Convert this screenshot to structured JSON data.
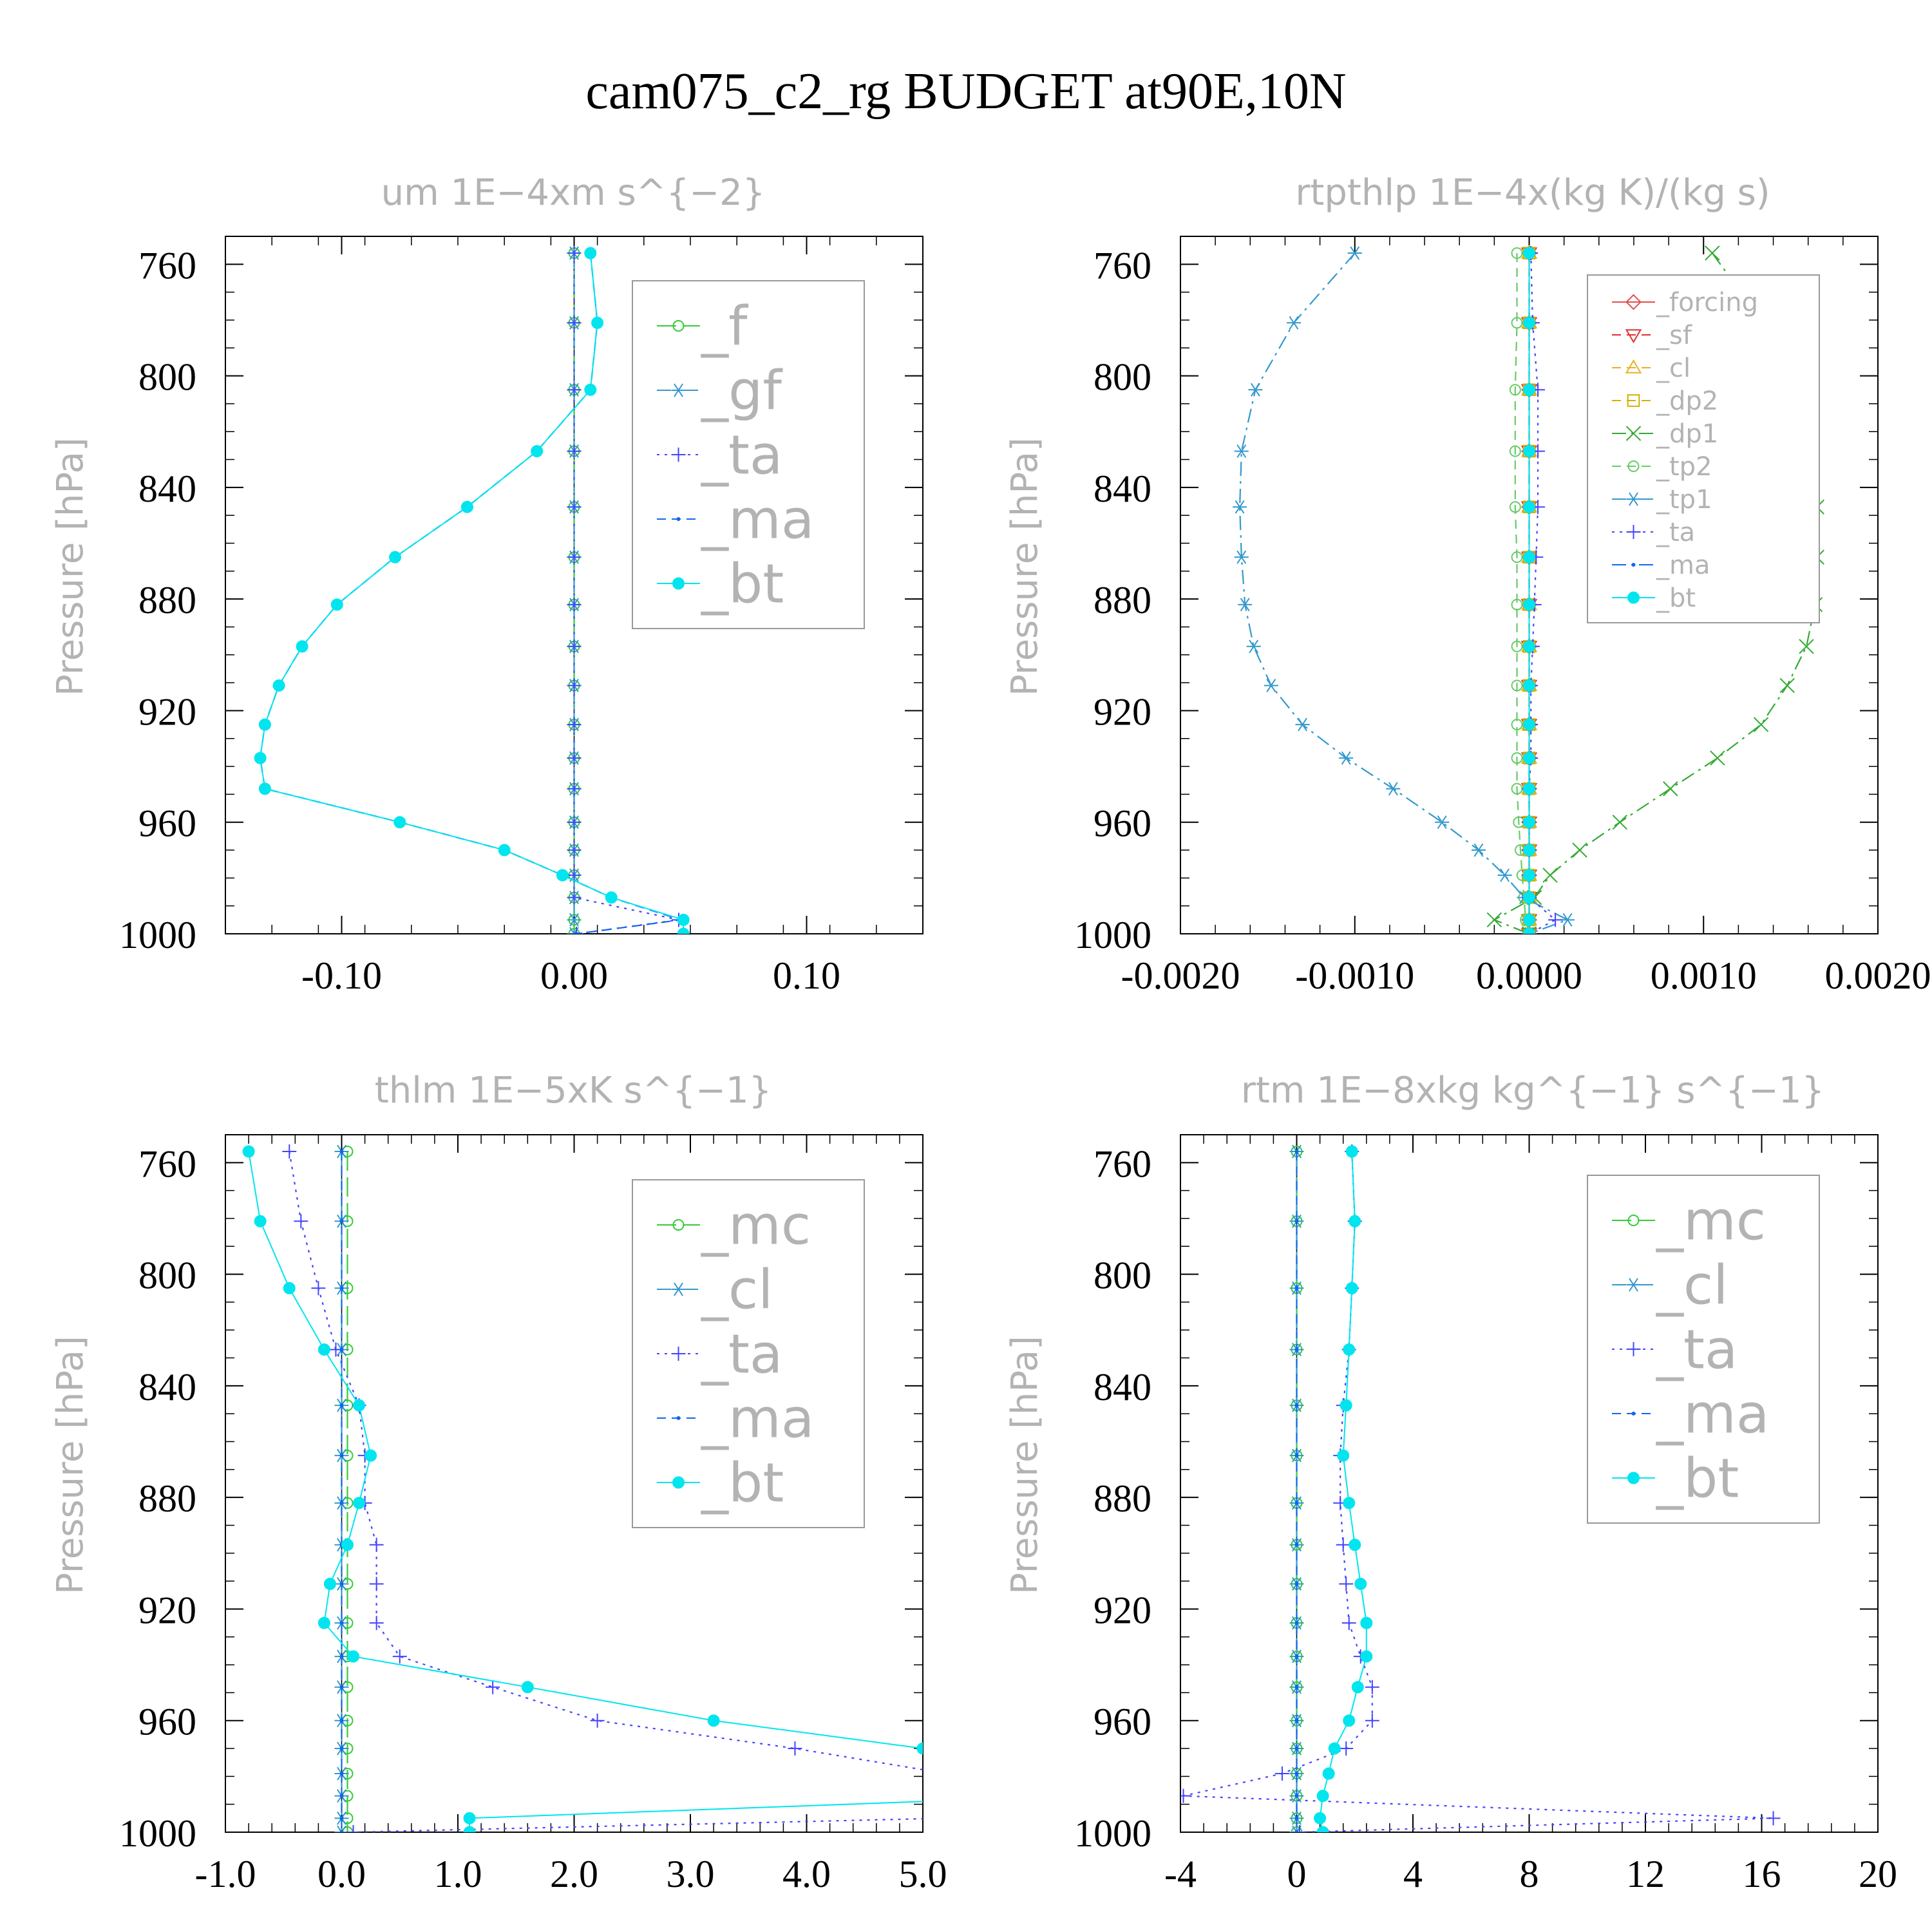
{
  "title": "cam075_c2_rg  BUDGET at90E,10N",
  "chart_data": [
    {
      "type": "line",
      "title": "um   1E−4xm s^{−2}",
      "ylabel": "Pressure [hPa]",
      "ylim": [
        1000,
        750
      ],
      "xlim": [
        -0.15,
        0.15
      ],
      "yticks": [
        "760",
        "800",
        "840",
        "880",
        "920",
        "960",
        "1000"
      ],
      "xticks": [
        "-0.10",
        "0.00",
        "0.10"
      ],
      "grid": false,
      "legend_position": "top-right",
      "levels": [
        756,
        781,
        805,
        827,
        847,
        865,
        882,
        897,
        911,
        925,
        937,
        948,
        960,
        970,
        979,
        987,
        995,
        1000
      ],
      "series": [
        {
          "name": "_f",
          "color": "#33cc33",
          "dash": "long",
          "marker": "circle-open",
          "values": [
            0,
            0,
            0,
            0,
            0,
            0,
            0,
            0,
            0,
            0,
            0,
            0,
            0,
            0,
            0,
            0,
            0,
            0
          ]
        },
        {
          "name": "_gf",
          "color": "#3399cc",
          "dash": "dashdot",
          "marker": "asterisk",
          "values": [
            0,
            0,
            0,
            0,
            0,
            0,
            0,
            0,
            0,
            0,
            0,
            0,
            0,
            0,
            0,
            0,
            0,
            0
          ]
        },
        {
          "name": "_ta",
          "color": "#4444ff",
          "dash": "dot",
          "marker": "plus",
          "values": [
            0,
            0,
            0,
            0,
            0,
            0,
            0,
            0,
            0,
            0,
            0,
            0,
            0,
            0,
            0,
            0,
            0.045,
            0.001
          ]
        },
        {
          "name": "_ma",
          "color": "#1166ee",
          "dash": "dash",
          "marker": "dot",
          "values": [
            0.007,
            0.01,
            0.007,
            -0.016,
            -0.046,
            -0.077,
            -0.102,
            -0.117,
            -0.127,
            -0.133,
            -0.135,
            -0.133,
            -0.075,
            -0.03,
            -0.005,
            0.016,
            0.046,
            0.001
          ]
        },
        {
          "name": "_bt",
          "color": "#00e5ee",
          "dash": "solid",
          "marker": "circle-filled",
          "values": [
            0.007,
            0.01,
            0.007,
            -0.016,
            -0.046,
            -0.077,
            -0.102,
            -0.117,
            -0.127,
            -0.133,
            -0.135,
            -0.133,
            -0.075,
            -0.03,
            -0.005,
            0.016,
            0.047,
            0.047
          ]
        }
      ]
    },
    {
      "type": "line",
      "title": "rtpthlp   1E−4x(kg K)/(kg s)",
      "ylabel": "Pressure [hPa]",
      "ylim": [
        1000,
        750
      ],
      "xlim": [
        -0.002,
        0.002
      ],
      "yticks": [
        "760",
        "800",
        "840",
        "880",
        "920",
        "960",
        "1000"
      ],
      "xticks": [
        "-0.0020",
        "-0.0010",
        "0.0000",
        "0.0010",
        "0.0020"
      ],
      "grid": false,
      "legend_position": "top-right",
      "levels": [
        756,
        781,
        805,
        827,
        847,
        865,
        882,
        897,
        911,
        925,
        937,
        948,
        960,
        970,
        979,
        987,
        995,
        1000
      ],
      "series": [
        {
          "name": "_forcing",
          "color": "#e05050",
          "dash": "solid",
          "marker": "diamond",
          "values": [
            0,
            0,
            0,
            0,
            0,
            0,
            0,
            0,
            0,
            0,
            0,
            0,
            0,
            0,
            0,
            0,
            0,
            0
          ]
        },
        {
          "name": "_sf",
          "color": "#e03030",
          "dash": "dash",
          "marker": "triangle-down",
          "values": [
            0,
            0,
            0,
            0,
            0,
            0,
            0,
            0,
            0,
            0,
            0,
            0,
            0,
            0,
            0,
            0,
            0,
            0
          ]
        },
        {
          "name": "_cl",
          "color": "#e8b020",
          "dash": "dash",
          "marker": "triangle-up",
          "values": [
            0,
            0,
            0,
            0,
            0,
            0,
            0,
            0,
            0,
            0,
            0,
            0,
            0,
            0,
            0,
            0,
            0,
            0
          ]
        },
        {
          "name": "_dp2",
          "color": "#d4b000",
          "dash": "dash",
          "marker": "square",
          "values": [
            0,
            0,
            0,
            0,
            0,
            0,
            0,
            0,
            0,
            0,
            0,
            0,
            0,
            0,
            0,
            0,
            0,
            0
          ]
        },
        {
          "name": "_dp1",
          "color": "#33aa33",
          "dash": "dashdot",
          "marker": "x",
          "values": [
            0.00105,
            0.00134,
            0.00155,
            0.00162,
            0.00165,
            0.00165,
            0.00164,
            0.00159,
            0.00148,
            0.00133,
            0.00108,
            0.00081,
            0.00052,
            0.00029,
            0.00012,
            3e-05,
            -0.0002,
            0
          ]
        },
        {
          "name": "_tp2",
          "color": "#66cc66",
          "dash": "dash",
          "marker": "circle-open",
          "values": [
            -7e-05,
            -7e-05,
            -8e-05,
            -8e-05,
            -8e-05,
            -7e-05,
            -7e-05,
            -7e-05,
            -7e-05,
            -7e-05,
            -7e-05,
            -7e-05,
            -6e-05,
            -5e-05,
            -4e-05,
            -3e-05,
            -2e-05,
            0
          ]
        },
        {
          "name": "_tp1",
          "color": "#3399cc",
          "dash": "dashdot",
          "marker": "asterisk",
          "values": [
            -0.001,
            -0.00135,
            -0.00157,
            -0.00165,
            -0.00166,
            -0.00165,
            -0.00163,
            -0.00158,
            -0.00148,
            -0.0013,
            -0.00105,
            -0.00078,
            -0.0005,
            -0.00029,
            -0.00014,
            -3e-05,
            0.00022,
            0
          ]
        },
        {
          "name": "_ta",
          "color": "#4444ff",
          "dash": "dot",
          "marker": "plus",
          "values": [
            1e-05,
            2e-05,
            5e-05,
            5e-05,
            5e-05,
            4e-05,
            3e-05,
            2e-05,
            1e-05,
            1e-05,
            1e-05,
            0,
            0,
            0,
            0,
            0,
            0.00015,
            0
          ]
        },
        {
          "name": "_ma",
          "color": "#1166ee",
          "dash": "dashdot",
          "marker": "dot",
          "values": [
            0,
            0,
            0,
            0,
            0,
            0,
            0,
            0,
            0,
            0,
            0,
            0,
            0,
            0,
            0,
            0,
            0,
            0
          ]
        },
        {
          "name": "_bt",
          "color": "#00e5ee",
          "dash": "solid",
          "marker": "circle-filled",
          "values": [
            0,
            0,
            0,
            0,
            0,
            0,
            0,
            0,
            0,
            0,
            0,
            0,
            0,
            0,
            0,
            0,
            0,
            0
          ]
        }
      ]
    },
    {
      "type": "line",
      "title": "thlm   1E−5xK s^{−1}",
      "ylabel": "Pressure [hPa]",
      "ylim": [
        1000,
        750
      ],
      "xlim": [
        -1,
        5
      ],
      "yticks": [
        "760",
        "800",
        "840",
        "880",
        "920",
        "960",
        "1000"
      ],
      "xticks": [
        "-1.0",
        "0.0",
        "1.0",
        "2.0",
        "3.0",
        "4.0",
        "5.0"
      ],
      "grid": false,
      "legend_position": "top-right",
      "levels": [
        756,
        781,
        805,
        827,
        847,
        865,
        882,
        897,
        911,
        925,
        937,
        948,
        960,
        970,
        979,
        987,
        995,
        1000
      ],
      "series": [
        {
          "name": "_mc",
          "color": "#33cc33",
          "dash": "long",
          "marker": "circle-open",
          "values": [
            0.05,
            0.05,
            0.05,
            0.05,
            0.05,
            0.05,
            0.05,
            0.05,
            0.05,
            0.05,
            0.05,
            0.05,
            0.05,
            0.05,
            0.05,
            0.05,
            0.05,
            0.05
          ]
        },
        {
          "name": "_cl",
          "color": "#3399cc",
          "dash": "dashdot",
          "marker": "asterisk",
          "values": [
            0,
            0,
            0,
            0,
            0,
            0,
            0,
            0,
            0,
            0,
            0,
            0,
            0,
            0,
            0,
            0,
            0,
            0
          ]
        },
        {
          "name": "_ta",
          "color": "#4444ff",
          "dash": "dot",
          "marker": "plus",
          "values": [
            -0.45,
            -0.35,
            -0.2,
            -0.05,
            0.15,
            0.2,
            0.2,
            0.3,
            0.3,
            0.3,
            0.5,
            1.3,
            2.2,
            3.9,
            5.2,
            5.5,
            5.2,
            0.1
          ]
        },
        {
          "name": "_ma",
          "color": "#1166ee",
          "dash": "dash",
          "marker": "dot",
          "values": [
            0,
            0,
            0,
            0,
            0,
            0,
            0,
            0,
            0,
            0,
            0,
            0,
            0,
            0,
            0,
            0,
            0,
            0
          ]
        },
        {
          "name": "_bt",
          "color": "#00e5ee",
          "dash": "solid",
          "marker": "circle-filled",
          "values": [
            -0.8,
            -0.7,
            -0.45,
            -0.15,
            0.15,
            0.25,
            0.15,
            0.05,
            -0.1,
            -0.15,
            0.1,
            1.6,
            3.2,
            5.0,
            6.1,
            6.3,
            1.1,
            1.1
          ]
        }
      ]
    },
    {
      "type": "line",
      "title": "rtm   1E−8xkg kg^{−1} s^{−1}",
      "ylabel": "Pressure [hPa]",
      "ylim": [
        1000,
        750
      ],
      "xlim": [
        -4,
        20
      ],
      "yticks": [
        "760",
        "800",
        "840",
        "880",
        "920",
        "960",
        "1000"
      ],
      "xticks": [
        "-4",
        "0",
        "4",
        "8",
        "12",
        "16",
        "20"
      ],
      "grid": false,
      "legend_position": "top-right",
      "levels": [
        756,
        781,
        805,
        827,
        847,
        865,
        882,
        897,
        911,
        925,
        937,
        948,
        960,
        970,
        979,
        987,
        995,
        1000
      ],
      "series": [
        {
          "name": "_mc",
          "color": "#33cc33",
          "dash": "long",
          "marker": "circle-open",
          "values": [
            0,
            0,
            0,
            0,
            0,
            0,
            0,
            0,
            0,
            0,
            0,
            0,
            0,
            0,
            0,
            0,
            0,
            0
          ]
        },
        {
          "name": "_cl",
          "color": "#3399cc",
          "dash": "dashdot",
          "marker": "asterisk",
          "values": [
            0,
            0,
            0,
            0,
            0,
            0,
            0,
            0,
            0,
            0,
            0,
            0,
            0,
            0,
            0,
            0,
            0,
            0
          ]
        },
        {
          "name": "_ta",
          "color": "#4444ff",
          "dash": "dot",
          "marker": "plus",
          "values": [
            1.9,
            2.0,
            1.9,
            1.8,
            1.6,
            1.5,
            1.5,
            1.6,
            1.7,
            1.8,
            2.2,
            2.6,
            2.6,
            1.7,
            -0.5,
            -3.9,
            16.4,
            0.1
          ]
        },
        {
          "name": "_ma",
          "color": "#1166ee",
          "dash": "dash",
          "marker": "dot",
          "values": [
            0,
            0,
            0,
            0,
            0,
            0,
            0,
            0,
            0,
            0,
            0,
            0,
            0,
            0,
            0,
            0,
            0,
            0
          ]
        },
        {
          "name": "_bt",
          "color": "#00e5ee",
          "dash": "solid",
          "marker": "circle-filled",
          "values": [
            1.9,
            2.0,
            1.9,
            1.8,
            1.7,
            1.6,
            1.8,
            2.0,
            2.2,
            2.4,
            2.4,
            2.1,
            1.8,
            1.3,
            1.1,
            0.9,
            0.8,
            0.9
          ]
        }
      ]
    }
  ]
}
